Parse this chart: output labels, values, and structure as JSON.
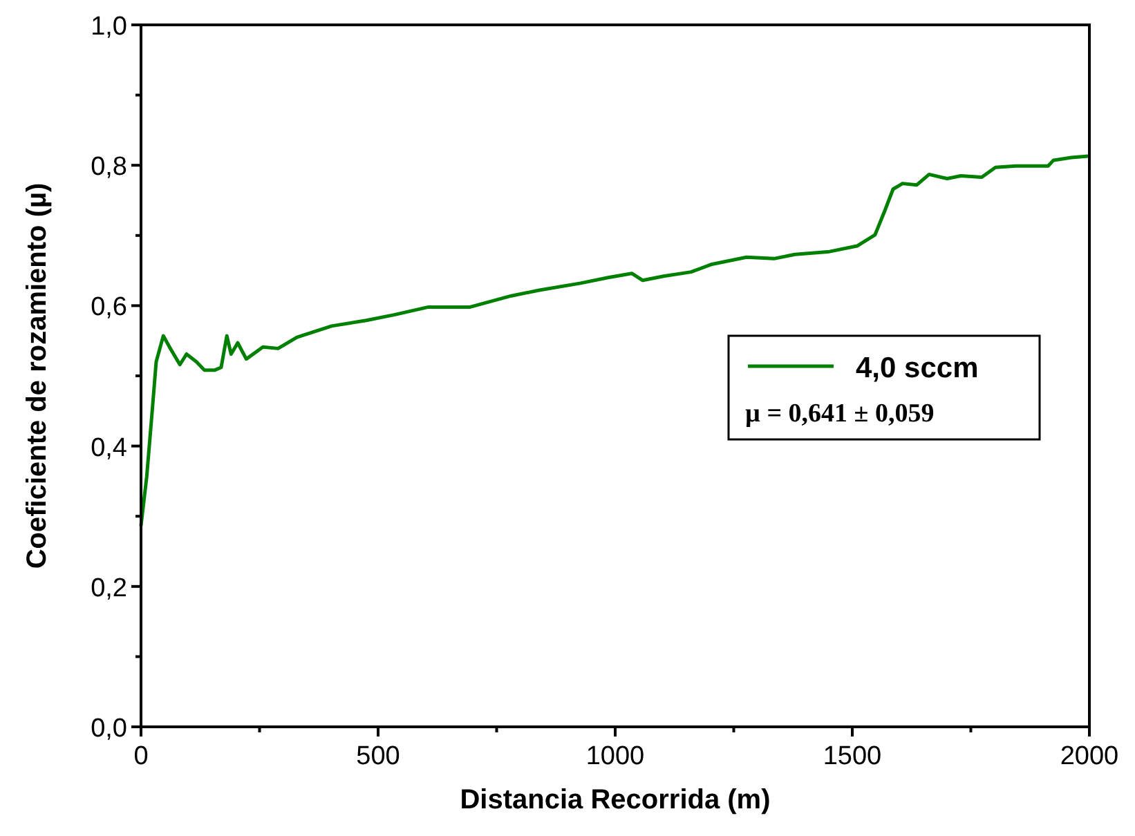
{
  "chart_data": {
    "type": "line",
    "xlabel": "Distancia Recorrida (m)",
    "ylabel": "Coeficiente de rozamiento (µ)",
    "xlim": [
      0,
      2000
    ],
    "ylim": [
      0,
      1
    ],
    "xticks": [
      {
        "value": 0,
        "label": "0"
      },
      {
        "value": 250,
        "label": null
      },
      {
        "value": 500,
        "label": "500"
      },
      {
        "value": 750,
        "label": null
      },
      {
        "value": 1000,
        "label": "1000"
      },
      {
        "value": 1250,
        "label": null
      },
      {
        "value": 1500,
        "label": "1500"
      },
      {
        "value": 1750,
        "label": null
      },
      {
        "value": 2000,
        "label": "2000"
      }
    ],
    "yticks": [
      {
        "value": 0,
        "label": "0,0"
      },
      {
        "value": 0.1,
        "label": null
      },
      {
        "value": 0.2,
        "label": "0,2"
      },
      {
        "value": 0.3,
        "label": null
      },
      {
        "value": 0.4,
        "label": "0,4"
      },
      {
        "value": 0.5,
        "label": null
      },
      {
        "value": 0.6,
        "label": "0,6"
      },
      {
        "value": 0.7,
        "label": null
      },
      {
        "value": 0.8,
        "label": "0,8"
      },
      {
        "value": 0.9,
        "label": null
      },
      {
        "value": 1,
        "label": "1,0"
      }
    ],
    "grid": false,
    "legend": "right",
    "marker": "none",
    "line_style": "solid",
    "annotations": [
      "µ = 0,641 ± 0,059"
    ],
    "series": [
      {
        "name": "4,0 sccm",
        "color": "#008000",
        "x": [
          0,
          12,
          23,
          32,
          47,
          61,
          82,
          96,
          117,
          134,
          155,
          169,
          181,
          190,
          204,
          222,
          257,
          289,
          329,
          402,
          475,
          534,
          606,
          694,
          781,
          840,
          927,
          985,
          1035,
          1058,
          1102,
          1160,
          1204,
          1277,
          1335,
          1379,
          1452,
          1510,
          1548,
          1569,
          1586,
          1606,
          1636,
          1662,
          1700,
          1729,
          1773,
          1802,
          1845,
          1913,
          1924,
          1962,
          1997
        ],
        "values": [
          0.287,
          0.356,
          0.445,
          0.52,
          0.557,
          0.54,
          0.516,
          0.531,
          0.52,
          0.508,
          0.508,
          0.512,
          0.557,
          0.531,
          0.547,
          0.524,
          0.541,
          0.539,
          0.555,
          0.571,
          0.579,
          0.587,
          0.598,
          0.598,
          0.614,
          0.622,
          0.632,
          0.64,
          0.646,
          0.636,
          0.642,
          0.648,
          0.659,
          0.669,
          0.667,
          0.673,
          0.677,
          0.685,
          0.701,
          0.736,
          0.766,
          0.774,
          0.772,
          0.787,
          0.781,
          0.785,
          0.783,
          0.797,
          0.799,
          0.799,
          0.807,
          0.811,
          0.813
        ]
      }
    ]
  }
}
